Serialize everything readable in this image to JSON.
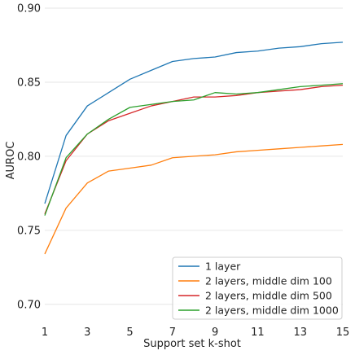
{
  "chart_data": {
    "type": "line",
    "title": "",
    "xlabel": "Support set k-shot",
    "ylabel": "AUROC",
    "xlim": [
      1,
      15
    ],
    "ylim": [
      0.69,
      0.9
    ],
    "xticks": [
      1,
      3,
      5,
      7,
      9,
      11,
      13,
      15
    ],
    "xtick_labels": [
      "1",
      "3",
      "5",
      "7",
      "9",
      "11",
      "13",
      "15"
    ],
    "yticks": [
      0.7,
      0.75,
      0.8,
      0.85,
      0.9
    ],
    "ytick_labels": [
      "0.70",
      "0.75",
      "0.80",
      "0.85",
      "0.90"
    ],
    "grid": "horizontal",
    "legend_position": "lower-right",
    "x": [
      1,
      2,
      3,
      4,
      5,
      6,
      7,
      8,
      9,
      10,
      11,
      12,
      13,
      14,
      15
    ],
    "series": [
      {
        "name": "1 layer",
        "color": "#1f77b4",
        "values": [
          0.768,
          0.814,
          0.834,
          0.843,
          0.852,
          0.858,
          0.864,
          0.866,
          0.867,
          0.87,
          0.871,
          0.873,
          0.874,
          0.876,
          0.877
        ]
      },
      {
        "name": "2 layers, middle dim 100",
        "color": "#ff7f0e",
        "values": [
          0.734,
          0.765,
          0.782,
          0.79,
          0.792,
          0.794,
          0.799,
          0.8,
          0.801,
          0.803,
          0.804,
          0.805,
          0.806,
          0.807,
          0.808
        ]
      },
      {
        "name": "2 layers, middle dim 500",
        "color": "#d62728",
        "values": [
          0.761,
          0.797,
          0.815,
          0.824,
          0.829,
          0.834,
          0.837,
          0.84,
          0.84,
          0.841,
          0.843,
          0.844,
          0.845,
          0.847,
          0.848
        ]
      },
      {
        "name": "2 layers, middle dim 1000",
        "color": "#2ca02c",
        "values": [
          0.76,
          0.799,
          0.815,
          0.825,
          0.833,
          0.835,
          0.837,
          0.838,
          0.843,
          0.842,
          0.843,
          0.845,
          0.847,
          0.848,
          0.849
        ]
      }
    ]
  }
}
